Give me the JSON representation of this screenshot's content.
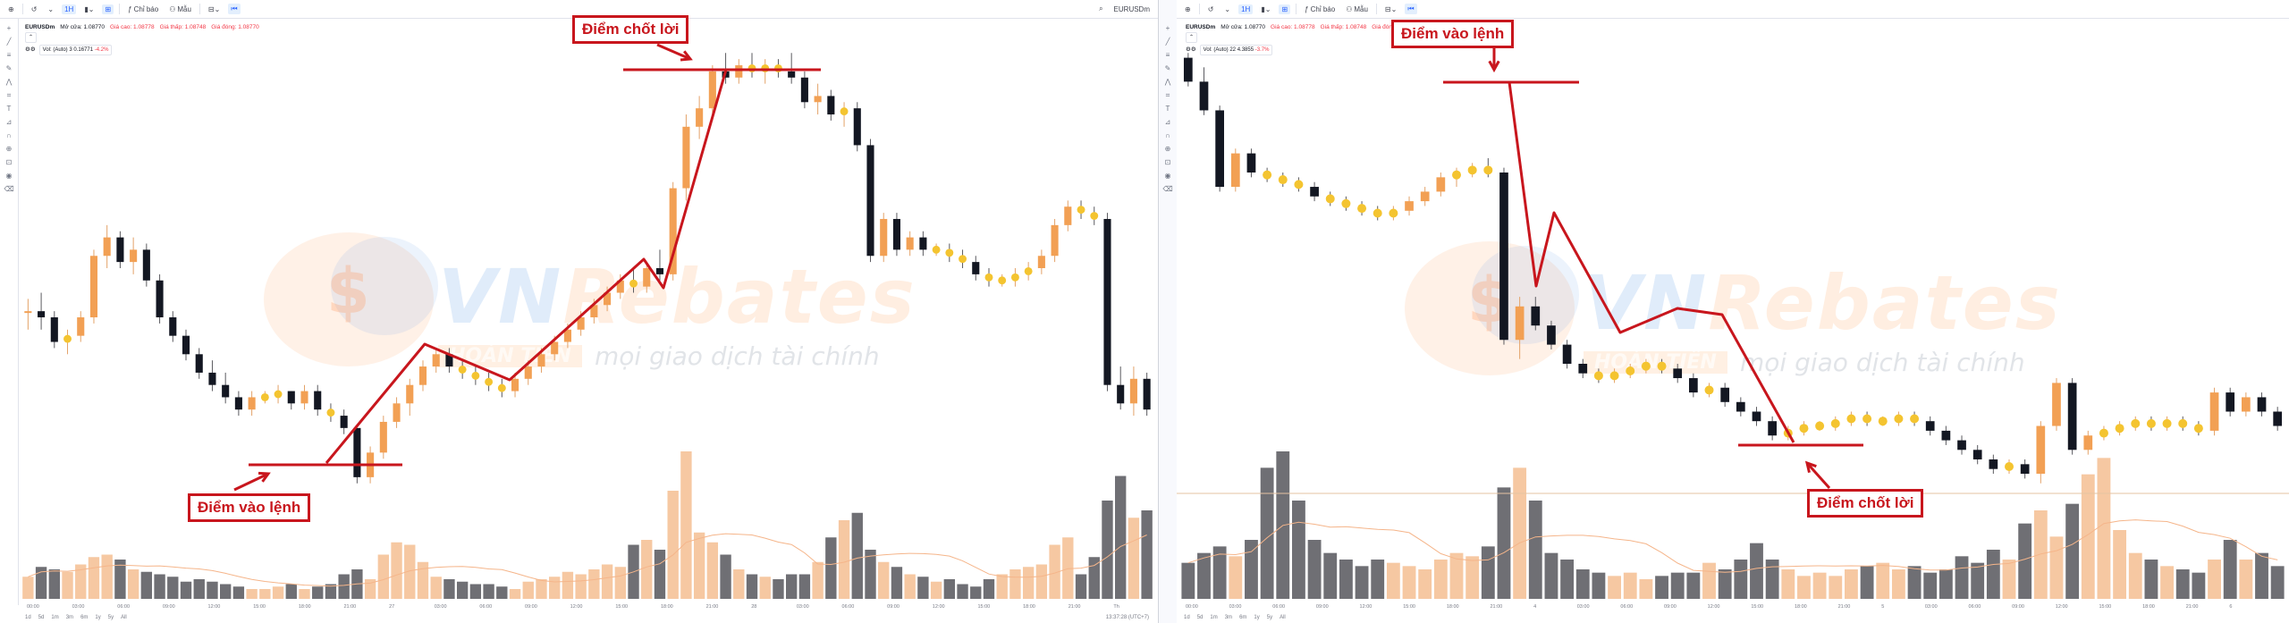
{
  "colors": {
    "bull": "#f2a054",
    "bull_volume": "#f6c8a2",
    "bear": "#131722",
    "bear_volume": "#6f6f74",
    "doji": "#f4c430",
    "annotation": "#c8161d",
    "watermark_orange": "#ffb278",
    "watermark_blue": "#64a0e6"
  },
  "toolbar": {
    "interval_label": "1H",
    "indicators_label": "Chỉ báo",
    "templates_label": "Mẫu",
    "icons": [
      "plus-icon",
      "undo-icon",
      "candles-icon",
      "indicators-icon",
      "templates-icon",
      "layout-icon",
      "replay-icon"
    ]
  },
  "legend": {
    "symbol": "EURUSDm",
    "open": "Mở cửa: 1.08770",
    "high": "Giá cao: 1.08778",
    "low": "Giá thấp: 1.08748",
    "close": "Giá đóng: 1.08770"
  },
  "volume_legend": {
    "left": {
      "label": "Vol: (Auto)",
      "value": "3",
      "change": "0.16771",
      "pct": "-4.2%"
    },
    "right": {
      "label": "Vol: (Auto)",
      "value": "22",
      "change": "4.3855",
      "pct": "-3.7%"
    }
  },
  "sidebar_icons": [
    "crosshair-icon",
    "trend-line-icon",
    "fib-icon",
    "brush-icon",
    "pattern-icon",
    "forecast-icon",
    "text-icon",
    "measure-icon",
    "magnet-icon",
    "zoom-icon",
    "lock-icon",
    "eye-icon",
    "trash-icon"
  ],
  "watermark": {
    "brand_part1": "VN",
    "brand_part2": "Rebates",
    "tagline_strip": "HOÀN TIỀN",
    "tagline": "mọi giao dịch tài chính"
  },
  "annotations": {
    "left_take_profit": "Điểm chốt lời",
    "left_entry": "Điểm vào lệnh",
    "right_entry": "Điểm vào lệnh",
    "right_take_profit": "Điểm chốt lời"
  },
  "bottom_bar": {
    "ranges": [
      "1d",
      "5d",
      "1m",
      "3m",
      "6m",
      "1y",
      "5y",
      "All"
    ],
    "left_clock": "13:37:28 (UTC+7)"
  },
  "time_labels_left": [
    "00:00",
    "03:00",
    "06:00",
    "09:00",
    "12:00",
    "15:00",
    "18:00",
    "21:00",
    "27",
    "03:00",
    "06:00",
    "09:00",
    "12:00",
    "15:00",
    "18:00",
    "21:00",
    "28",
    "03:00",
    "06:00",
    "09:00",
    "12:00",
    "15:00",
    "18:00",
    "21:00",
    "Th"
  ],
  "time_labels_right": [
    "00:00",
    "03:00",
    "06:00",
    "09:00",
    "12:00",
    "15:00",
    "18:00",
    "21:00",
    "4",
    "03:00",
    "06:00",
    "09:00",
    "12:00",
    "15:00",
    "18:00",
    "21:00",
    "5",
    "03:00",
    "06:00",
    "09:00",
    "12:00",
    "15:00",
    "18:00",
    "21:00",
    "6"
  ],
  "chart_data": [
    {
      "type": "candlestick",
      "title": "EURUSDm",
      "panel": "left",
      "ohlc": [
        [
          50,
          52,
          47,
          50
        ],
        [
          50,
          53,
          47,
          49
        ],
        [
          49,
          50,
          44,
          45
        ],
        [
          45,
          47,
          43,
          46
        ],
        [
          46,
          50,
          45,
          49
        ],
        [
          49,
          60,
          48,
          59
        ],
        [
          59,
          64,
          57,
          62
        ],
        [
          62,
          63,
          57,
          58
        ],
        [
          58,
          62,
          56,
          60
        ],
        [
          60,
          61,
          54,
          55
        ],
        [
          55,
          56,
          48,
          49
        ],
        [
          49,
          50,
          45,
          46
        ],
        [
          46,
          47,
          42,
          43
        ],
        [
          43,
          44,
          39,
          40
        ],
        [
          40,
          42,
          37,
          38
        ],
        [
          38,
          40,
          35,
          36
        ],
        [
          36,
          37,
          33,
          34
        ],
        [
          34,
          37,
          33,
          36
        ],
        [
          36,
          37,
          35,
          36
        ],
        [
          36,
          38,
          35,
          37
        ],
        [
          37,
          37,
          34,
          35
        ],
        [
          35,
          38,
          34,
          37
        ],
        [
          37,
          38,
          33,
          34
        ],
        [
          34,
          35,
          32,
          33
        ],
        [
          33,
          34,
          30,
          31
        ],
        [
          31,
          31,
          22,
          23
        ],
        [
          23,
          28,
          22,
          27
        ],
        [
          27,
          33,
          26,
          32
        ],
        [
          32,
          36,
          31,
          35
        ],
        [
          35,
          39,
          33,
          38
        ],
        [
          38,
          42,
          37,
          41
        ],
        [
          41,
          44,
          40,
          43
        ],
        [
          43,
          44,
          40,
          41
        ],
        [
          41,
          42,
          39,
          40
        ],
        [
          40,
          41,
          38,
          39
        ],
        [
          39,
          40,
          37,
          38
        ],
        [
          38,
          39,
          36,
          37
        ],
        [
          37,
          40,
          36,
          39
        ],
        [
          39,
          42,
          38,
          41
        ],
        [
          41,
          44,
          40,
          43
        ],
        [
          43,
          46,
          42,
          45
        ],
        [
          45,
          48,
          44,
          47
        ],
        [
          47,
          50,
          46,
          49
        ],
        [
          49,
          52,
          48,
          51
        ],
        [
          51,
          54,
          50,
          53
        ],
        [
          53,
          56,
          52,
          55
        ],
        [
          55,
          57,
          53,
          54
        ],
        [
          54,
          58,
          53,
          57
        ],
        [
          57,
          60,
          55,
          56
        ],
        [
          56,
          71,
          55,
          70
        ],
        [
          70,
          82,
          68,
          80
        ],
        [
          80,
          85,
          78,
          83
        ],
        [
          83,
          90,
          81,
          89
        ],
        [
          89,
          92,
          87,
          88
        ],
        [
          88,
          91,
          87,
          90
        ],
        [
          90,
          92,
          88,
          89
        ],
        [
          89,
          91,
          87,
          90
        ],
        [
          90,
          91,
          88,
          89
        ],
        [
          89,
          92,
          87,
          88
        ],
        [
          88,
          89,
          83,
          84
        ],
        [
          84,
          87,
          82,
          85
        ],
        [
          85,
          86,
          81,
          82
        ],
        [
          82,
          84,
          80,
          83
        ],
        [
          83,
          84,
          76,
          77
        ],
        [
          77,
          78,
          58,
          59
        ],
        [
          59,
          66,
          58,
          65
        ],
        [
          65,
          66,
          59,
          60
        ],
        [
          60,
          63,
          59,
          62
        ],
        [
          62,
          63,
          59,
          60
        ],
        [
          60,
          61,
          59,
          60
        ],
        [
          60,
          61,
          58,
          59
        ],
        [
          59,
          60,
          57,
          58
        ],
        [
          58,
          59,
          55,
          56
        ],
        [
          56,
          57,
          54,
          55
        ],
        [
          55,
          56,
          54,
          55
        ],
        [
          55,
          57,
          54,
          56
        ],
        [
          56,
          58,
          55,
          57
        ],
        [
          57,
          60,
          56,
          59
        ],
        [
          59,
          65,
          58,
          64
        ],
        [
          64,
          68,
          63,
          67
        ],
        [
          67,
          68,
          65,
          66
        ],
        [
          66,
          67,
          64,
          65
        ],
        [
          65,
          66,
          37,
          38
        ],
        [
          38,
          41,
          34,
          35
        ],
        [
          35,
          41,
          33,
          39
        ],
        [
          39,
          40,
          33,
          34
        ]
      ],
      "volume": [
        9,
        13,
        12,
        11,
        14,
        17,
        18,
        16,
        12,
        11,
        10,
        9,
        7,
        8,
        7,
        6,
        5,
        4,
        4,
        5,
        6,
        4,
        5,
        6,
        10,
        12,
        8,
        18,
        23,
        22,
        15,
        9,
        8,
        7,
        6,
        6,
        5,
        4,
        7,
        8,
        9,
        11,
        10,
        12,
        14,
        13,
        22,
        24,
        20,
        44,
        60,
        27,
        23,
        18,
        12,
        10,
        9,
        8,
        10,
        10,
        15,
        25,
        32,
        35,
        20,
        15,
        13,
        10,
        9,
        7,
        8,
        6,
        5,
        8,
        10,
        12,
        13,
        14,
        22,
        25,
        10,
        17,
        40,
        50,
        33,
        36
      ],
      "legend": "EURUSDm"
    },
    {
      "type": "candlestick",
      "title": "EURUSDm",
      "panel": "right",
      "ohlc": [
        [
          112,
          113,
          106,
          107
        ],
        [
          107,
          110,
          100,
          101
        ],
        [
          101,
          102,
          84,
          85
        ],
        [
          85,
          93,
          84,
          92
        ],
        [
          92,
          93,
          87,
          88
        ],
        [
          88,
          89,
          86,
          87
        ],
        [
          87,
          88,
          85,
          86
        ],
        [
          86,
          87,
          84,
          85
        ],
        [
          85,
          86,
          82,
          83
        ],
        [
          83,
          84,
          81,
          82
        ],
        [
          82,
          83,
          80,
          81
        ],
        [
          81,
          82,
          79,
          80
        ],
        [
          80,
          81,
          78,
          79
        ],
        [
          79,
          81,
          78,
          80
        ],
        [
          80,
          83,
          79,
          82
        ],
        [
          82,
          85,
          81,
          84
        ],
        [
          84,
          88,
          83,
          87
        ],
        [
          87,
          89,
          85,
          88
        ],
        [
          88,
          90,
          87,
          89
        ],
        [
          89,
          91,
          87,
          88
        ],
        [
          88,
          89,
          52,
          53
        ],
        [
          53,
          62,
          49,
          60
        ],
        [
          60,
          62,
          55,
          56
        ],
        [
          56,
          57,
          51,
          52
        ],
        [
          52,
          53,
          47,
          48
        ],
        [
          48,
          49,
          45,
          46
        ],
        [
          46,
          47,
          44,
          45
        ],
        [
          45,
          47,
          44,
          46
        ],
        [
          46,
          48,
          45,
          47
        ],
        [
          47,
          49,
          46,
          48
        ],
        [
          48,
          49,
          46,
          47
        ],
        [
          47,
          48,
          44,
          45
        ],
        [
          45,
          46,
          41,
          42
        ],
        [
          42,
          44,
          41,
          43
        ],
        [
          43,
          44,
          39,
          40
        ],
        [
          40,
          41,
          37,
          38
        ],
        [
          38,
          39,
          35,
          36
        ],
        [
          36,
          37,
          32,
          33
        ],
        [
          33,
          35,
          32,
          34
        ],
        [
          34,
          36,
          33,
          35
        ],
        [
          35,
          36,
          34,
          35
        ],
        [
          35,
          37,
          34,
          36
        ],
        [
          36,
          38,
          35,
          37
        ],
        [
          37,
          38,
          35,
          36
        ],
        [
          36,
          37,
          35,
          36
        ],
        [
          36,
          38,
          35,
          37
        ],
        [
          37,
          38,
          35,
          36
        ],
        [
          36,
          37,
          33,
          34
        ],
        [
          34,
          35,
          31,
          32
        ],
        [
          32,
          33,
          29,
          30
        ],
        [
          30,
          31,
          27,
          28
        ],
        [
          28,
          29,
          25,
          26
        ],
        [
          26,
          28,
          25,
          27
        ],
        [
          27,
          28,
          24,
          25
        ],
        [
          25,
          36,
          23,
          35
        ],
        [
          35,
          45,
          34,
          44
        ],
        [
          44,
          45,
          29,
          30
        ],
        [
          30,
          34,
          29,
          33
        ],
        [
          33,
          35,
          32,
          34
        ],
        [
          34,
          36,
          33,
          35
        ],
        [
          35,
          37,
          34,
          36
        ],
        [
          36,
          37,
          34,
          35
        ],
        [
          35,
          37,
          34,
          36
        ],
        [
          36,
          37,
          34,
          35
        ],
        [
          35,
          36,
          33,
          34
        ],
        [
          34,
          43,
          33,
          42
        ],
        [
          42,
          43,
          37,
          38
        ],
        [
          38,
          42,
          37,
          41
        ],
        [
          41,
          42,
          37,
          38
        ],
        [
          38,
          39,
          34,
          35
        ]
      ],
      "volume": [
        11,
        14,
        16,
        13,
        18,
        40,
        45,
        30,
        18,
        14,
        12,
        10,
        12,
        11,
        10,
        9,
        12,
        14,
        13,
        16,
        34,
        40,
        30,
        14,
        12,
        9,
        8,
        7,
        8,
        6,
        7,
        8,
        8,
        11,
        9,
        12,
        17,
        12,
        9,
        7,
        8,
        7,
        9,
        10,
        11,
        9,
        10,
        8,
        9,
        13,
        11,
        15,
        12,
        23,
        27,
        19,
        29,
        38,
        43,
        21,
        14,
        12,
        10,
        9,
        8,
        12,
        18,
        12,
        14,
        10
      ],
      "legend": "EURUSDm"
    }
  ]
}
